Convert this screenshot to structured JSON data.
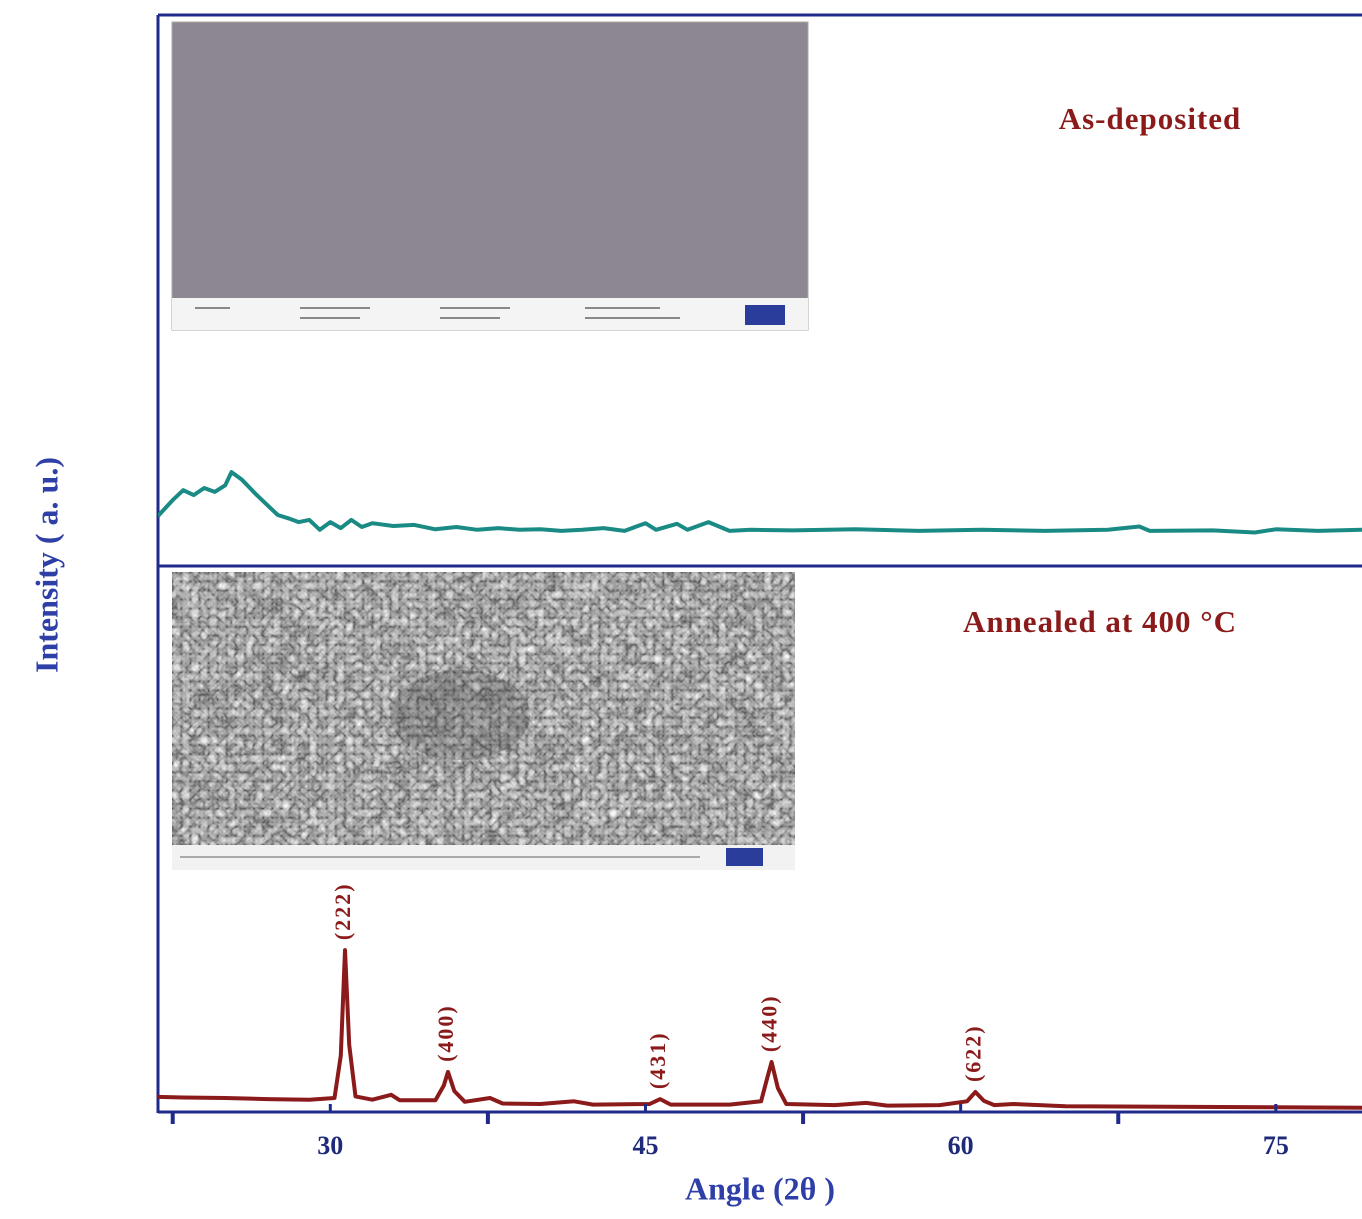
{
  "chart_data": [
    {
      "type": "line",
      "title": "As-deposited",
      "ylabel": "Intensity ( a. u.)",
      "x": [
        21.8,
        22.5,
        23.0,
        23.5,
        24.0,
        24.5,
        25.0,
        25.3,
        25.8,
        26.5,
        27.0,
        27.5,
        28.0,
        28.5,
        29.0,
        29.5,
        30.0,
        30.5,
        31.0,
        31.5,
        32,
        33,
        34,
        35,
        36,
        37,
        38,
        39,
        40,
        41,
        42,
        43,
        44,
        45,
        45.5,
        46.5,
        47,
        48,
        49,
        50,
        52,
        55,
        58,
        61,
        64,
        67,
        68.5,
        69,
        72,
        74,
        75,
        77,
        79.1
      ],
      "series": [
        {
          "color": "#1a8a84",
          "values": [
            8.9,
            11.8,
            13.6,
            12.7,
            14,
            13.3,
            14.5,
            16.9,
            15.5,
            12.7,
            10.9,
            9.1,
            8.5,
            7.8,
            8.2,
            6.4,
            7.8,
            6.7,
            8.2,
            6.9,
            7.6,
            7.1,
            7.3,
            6.5,
            6.9,
            6.4,
            6.7,
            6.4,
            6.5,
            6.2,
            6.4,
            6.7,
            6.2,
            7.6,
            6.4,
            7.5,
            6.4,
            7.8,
            6.2,
            6.4,
            6.3,
            6.5,
            6.2,
            6.4,
            6.2,
            6.4,
            7.0,
            6.2,
            6.3,
            5.9,
            6.5,
            6.2,
            6.4
          ]
        }
      ],
      "xlim": [
        21.8,
        79.1
      ],
      "ylim": [
        0,
        100
      ]
    },
    {
      "type": "line",
      "title": "Annealed at 400 °C",
      "xlabel": "Angle (2θ )",
      "x": [
        21.8,
        23,
        25,
        27,
        29,
        30.2,
        30.5,
        30.7,
        30.9,
        31.2,
        32,
        32.9,
        33.3,
        35.0,
        35.4,
        35.6,
        35.9,
        36.4,
        37.6,
        38.2,
        40,
        41.6,
        42.5,
        45.2,
        45.7,
        46.2,
        49,
        50.5,
        50.8,
        51.0,
        51.3,
        51.7,
        54,
        55.5,
        56.5,
        59,
        60.3,
        60.7,
        61.1,
        61.6,
        62.5,
        65,
        70,
        75,
        79.1
      ],
      "series": [
        {
          "color": "#8b1a1a",
          "values": [
            2.4,
            2.3,
            2.2,
            2.0,
            1.9,
            2.2,
            10,
            29.4,
            12,
            2.5,
            1.9,
            2.8,
            1.8,
            1.8,
            4.5,
            7.0,
            3.5,
            1.5,
            2.2,
            1.2,
            1.1,
            1.6,
            1.0,
            1.1,
            2.0,
            1.0,
            1.0,
            1.6,
            6,
            8.8,
            4,
            1.1,
            0.9,
            1.3,
            0.8,
            0.9,
            1.6,
            3.3,
            1.7,
            0.9,
            1.1,
            0.7,
            0.6,
            0.5,
            0.4
          ]
        }
      ],
      "xlim": [
        21.8,
        79.1
      ],
      "ylim": [
        0,
        100
      ],
      "xticks": [
        30,
        45,
        60,
        75
      ],
      "xminor": [
        22.5,
        37.5,
        52.5,
        67.5
      ],
      "annotations": [
        {
          "text": "(222)",
          "x": 30.7,
          "y": 29.4
        },
        {
          "text": "(400)",
          "x": 35.6,
          "y": 7.0
        },
        {
          "text": "(431)",
          "x": 45.7,
          "y": 2.0
        },
        {
          "text": "(440)",
          "x": 51.0,
          "y": 8.8
        },
        {
          "text": "(622)",
          "x": 60.7,
          "y": 3.3
        }
      ]
    }
  ]
}
